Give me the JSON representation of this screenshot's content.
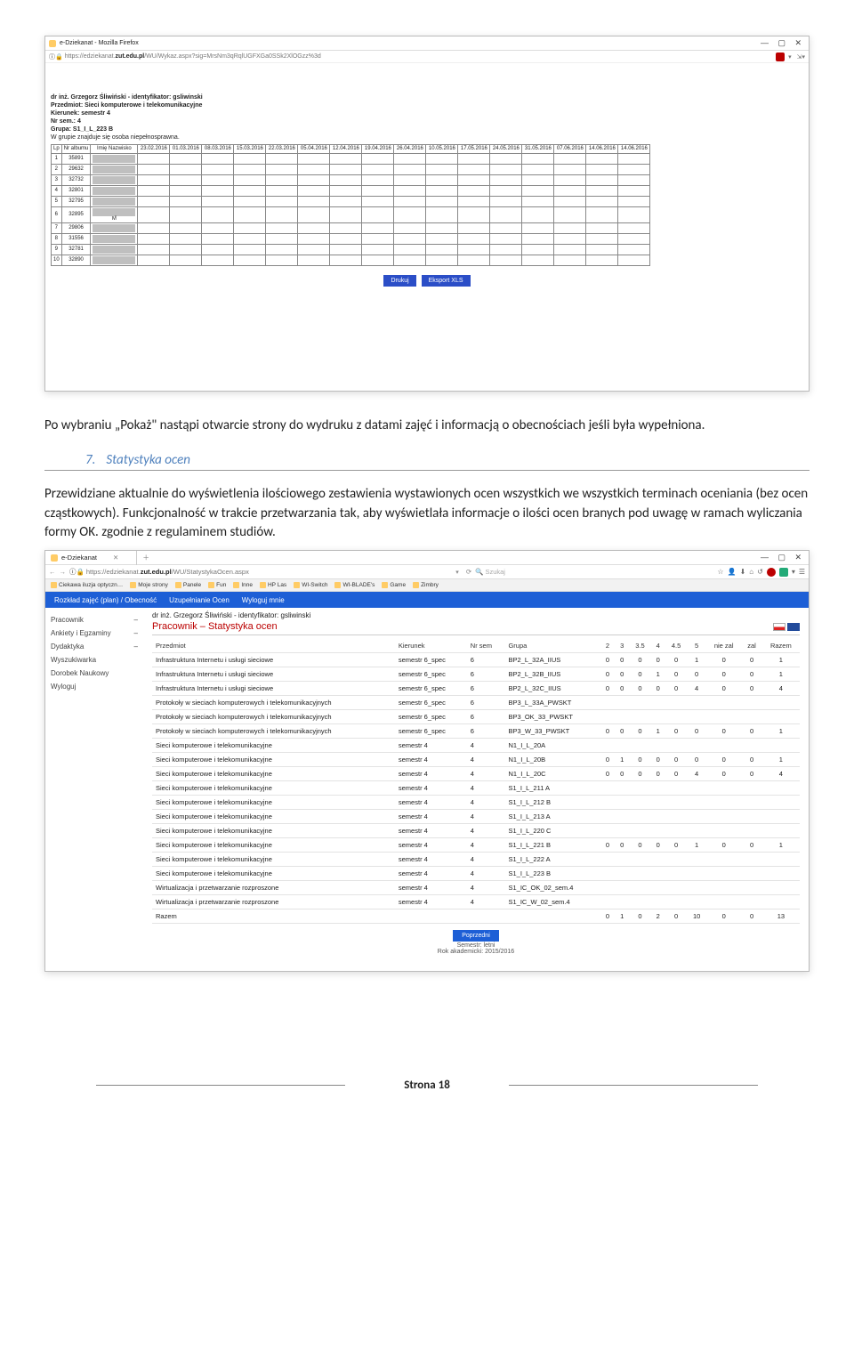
{
  "screenshot1": {
    "window_title": "e-Dziekanat - Mozilla Firefox",
    "url_prefix": "https://edziekanat.",
    "url_bold": "zut.edu.pl",
    "url_suffix": "/WU/Wykaz.aspx?sig=MrsNm3qRqlUGFXGa0SSk2XlOGzz%3d",
    "meta": {
      "lecturer": "dr inż. Grzegorz Śliwiński - identyfikator: gsliwinski",
      "subject_label": "Przedmiot:",
      "subject": "Sieci komputerowe i telekomunikacyjne",
      "direction_label": "Kierunek:",
      "direction": "semestr 4",
      "sem_label": "Nr sem.:",
      "sem": "4",
      "group_label": "Grupa:",
      "group": "S1_I_L_223 B",
      "note": "W grupie znajduje się osoba niepełnosprawna."
    },
    "att_headers": [
      "Lp",
      "Nr albumu",
      "Imię Nazwisko",
      "23.02.2016",
      "01.03.2016",
      "08.03.2016",
      "15.03.2016",
      "22.03.2016",
      "05.04.2016",
      "12.04.2016",
      "19.04.2016",
      "26.04.2016",
      "10.05.2016",
      "17.05.2016",
      "24.05.2016",
      "31.05.2016",
      "07.06.2016",
      "14.06.2016",
      "14.06.2016"
    ],
    "att_rows": [
      {
        "lp": "1",
        "idx": "35891"
      },
      {
        "lp": "2",
        "idx": "29632",
        "n": "♿"
      },
      {
        "lp": "3",
        "idx": "32732"
      },
      {
        "lp": "4",
        "idx": "32801"
      },
      {
        "lp": "5",
        "idx": "32795"
      },
      {
        "lp": "6",
        "idx": "32895",
        "m": "M",
        "n2": "♿"
      },
      {
        "lp": "7",
        "idx": "29806"
      },
      {
        "lp": "8",
        "idx": "31556"
      },
      {
        "lp": "9",
        "idx": "32781"
      },
      {
        "lp": "10",
        "idx": "32890"
      }
    ],
    "btn_print": "Drukuj",
    "btn_export": "Eksport XLS"
  },
  "para1": "Po wybraniu „Pokaż\" nastąpi otwarcie strony do wydruku z datami zajęć i informacją o obecnościach jeśli była wypełniona.",
  "heading": {
    "num": "7.",
    "text": "Statystyka ocen"
  },
  "para2": "Przewidziane aktualnie do wyświetlenia ilościowego zestawienia wystawionych ocen wszystkich we wszystkich terminach oceniania (bez ocen cząstkowych). Funkcjonalność w trakcie przetwarzania tak, aby wyświetlała informacje o ilości ocen branych pod uwagę w ramach wyliczania formy OK. zgodnie z regulaminem studiów.",
  "screenshot2": {
    "tab_title": "e-Dziekanat",
    "url_prefix": "https://edziekanat.",
    "url_bold": "zut.edu.pl",
    "url_suffix": "/WU/StatystykaOcen.aspx",
    "search_placeholder": "Szukaj",
    "bookmarks": [
      "Ciekawa iluzja optyczn…",
      "Moje strony",
      "Panele",
      "Fun",
      "Inne",
      "HP Las",
      "WI-Switch",
      "WI-BLADE's",
      "Game",
      "Zimbry"
    ],
    "nav": [
      "Rozkład zajęć (plan) / Obecność",
      "Uzupełnianie Ocen",
      "Wyloguj mnie"
    ],
    "sidebar": [
      {
        "label": "Pracownik",
        "exp": "–"
      },
      {
        "label": "Ankiety i Egzaminy",
        "exp": "–"
      },
      {
        "label": "Dydaktyka",
        "exp": "–"
      },
      {
        "label": "Wyszukiwarka"
      },
      {
        "label": "Dorobek Naukowy"
      },
      {
        "label": "Wyloguj"
      }
    ],
    "ident": "dr inż. Grzegorz Śliwiński - identyfikator: gsliwinski",
    "pagetitle": "Pracownik – Statystyka ocen",
    "columns": [
      "Przedmiot",
      "Kierunek",
      "Nr sem",
      "Grupa",
      "2",
      "3",
      "3.5",
      "4",
      "4.5",
      "5",
      "nie zal",
      "zal",
      "Razem"
    ],
    "rows": [
      [
        "Infrastruktura Internetu i usługi sieciowe",
        "semestr 6_spec",
        "6",
        "BP2_L_32A_IIUS",
        "0",
        "0",
        "0",
        "0",
        "0",
        "1",
        "0",
        "0",
        "1"
      ],
      [
        "Infrastruktura Internetu i usługi sieciowe",
        "semestr 6_spec",
        "6",
        "BP2_L_32B_IIUS",
        "0",
        "0",
        "0",
        "1",
        "0",
        "0",
        "0",
        "0",
        "1"
      ],
      [
        "Infrastruktura Internetu i usługi sieciowe",
        "semestr 6_spec",
        "6",
        "BP2_L_32C_IIUS",
        "0",
        "0",
        "0",
        "0",
        "0",
        "4",
        "0",
        "0",
        "4"
      ],
      [
        "Protokoły w sieciach komputerowych i telekomunikacyjnych",
        "semestr 6_spec",
        "6",
        "BP3_L_33A_PWSKT",
        "",
        "",
        "",
        "",
        "",
        "",
        "",
        "",
        ""
      ],
      [
        "Protokoły w sieciach komputerowych i telekomunikacyjnych",
        "semestr 6_spec",
        "6",
        "BP3_OK_33_PWSKT",
        "",
        "",
        "",
        "",
        "",
        "",
        "",
        "",
        ""
      ],
      [
        "Protokoły w sieciach komputerowych i telekomunikacyjnych",
        "semestr 6_spec",
        "6",
        "BP3_W_33_PWSKT",
        "0",
        "0",
        "0",
        "1",
        "0",
        "0",
        "0",
        "0",
        "1"
      ],
      [
        "Sieci komputerowe i telekomunikacyjne",
        "semestr 4",
        "4",
        "N1_I_L_20A",
        "",
        "",
        "",
        "",
        "",
        "",
        "",
        "",
        ""
      ],
      [
        "Sieci komputerowe i telekomunikacyjne",
        "semestr 4",
        "4",
        "N1_I_L_20B",
        "0",
        "1",
        "0",
        "0",
        "0",
        "0",
        "0",
        "0",
        "1"
      ],
      [
        "Sieci komputerowe i telekomunikacyjne",
        "semestr 4",
        "4",
        "N1_I_L_20C",
        "0",
        "0",
        "0",
        "0",
        "0",
        "4",
        "0",
        "0",
        "4"
      ],
      [
        "Sieci komputerowe i telekomunikacyjne",
        "semestr 4",
        "4",
        "S1_I_L_211 A",
        "",
        "",
        "",
        "",
        "",
        "",
        "",
        "",
        ""
      ],
      [
        "Sieci komputerowe i telekomunikacyjne",
        "semestr 4",
        "4",
        "S1_I_L_212 B",
        "",
        "",
        "",
        "",
        "",
        "",
        "",
        "",
        ""
      ],
      [
        "Sieci komputerowe i telekomunikacyjne",
        "semestr 4",
        "4",
        "S1_I_L_213 A",
        "",
        "",
        "",
        "",
        "",
        "",
        "",
        "",
        ""
      ],
      [
        "Sieci komputerowe i telekomunikacyjne",
        "semestr 4",
        "4",
        "S1_I_L_220 C",
        "",
        "",
        "",
        "",
        "",
        "",
        "",
        "",
        ""
      ],
      [
        "Sieci komputerowe i telekomunikacyjne",
        "semestr 4",
        "4",
        "S1_I_L_221 B",
        "0",
        "0",
        "0",
        "0",
        "0",
        "1",
        "0",
        "0",
        "1"
      ],
      [
        "Sieci komputerowe i telekomunikacyjne",
        "semestr 4",
        "4",
        "S1_I_L_222 A",
        "",
        "",
        "",
        "",
        "",
        "",
        "",
        "",
        ""
      ],
      [
        "Sieci komputerowe i telekomunikacyjne",
        "semestr 4",
        "4",
        "S1_I_L_223 B",
        "",
        "",
        "",
        "",
        "",
        "",
        "",
        "",
        ""
      ],
      [
        "Wirtualizacja i przetwarzanie rozproszone",
        "semestr 4",
        "4",
        "S1_IC_OK_02_sem.4",
        "",
        "",
        "",
        "",
        "",
        "",
        "",
        "",
        ""
      ],
      [
        "Wirtualizacja i przetwarzanie rozproszone",
        "semestr 4",
        "4",
        "S1_IC_W_02_sem.4",
        "",
        "",
        "",
        "",
        "",
        "",
        "",
        "",
        ""
      ]
    ],
    "total_row": [
      "Razem",
      "",
      "",
      "",
      "0",
      "1",
      "0",
      "2",
      "0",
      "10",
      "0",
      "0",
      "13"
    ],
    "prev_btn": "Poprzedni",
    "footer_sem": "Semestr: letni",
    "footer_year": "Rok akademicki: 2015/2016"
  },
  "footer": "Strona 18",
  "colors": {
    "blue_button": "#2b4ec7",
    "blue_nav": "#1d5fd6",
    "heading": "#4f81bd",
    "red_title": "#b00b0b"
  }
}
